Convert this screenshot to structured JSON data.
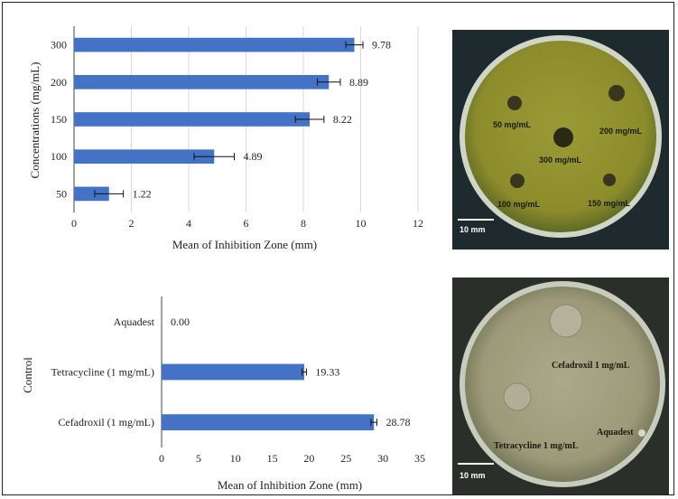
{
  "chart_data": [
    {
      "type": "bar",
      "orientation": "horizontal",
      "categories": [
        "300",
        "200",
        "150",
        "100",
        "50"
      ],
      "values": [
        9.78,
        8.89,
        8.22,
        4.89,
        1.22
      ],
      "value_labels": [
        "9.78",
        "8.89",
        "8.22",
        "4.89",
        "1.22"
      ],
      "errors": [
        0.3,
        0.4,
        0.5,
        0.7,
        0.5
      ],
      "xlabel": "Mean of Inhibition Zone (mm)",
      "ylabel": "Concentrations (mg/mL)",
      "xlim": [
        0,
        12
      ],
      "xticks": [
        "0",
        "2",
        "4",
        "6",
        "8",
        "10",
        "12"
      ],
      "grid": "vertical",
      "bar_color": "#4472c4"
    },
    {
      "type": "bar",
      "orientation": "horizontal",
      "categories": [
        "Aquadest",
        "Tetracycline (1 mg/mL)",
        "Cefadroxil (1 mg/mL)"
      ],
      "values": [
        0,
        19.33,
        28.78
      ],
      "value_labels": [
        "0.00",
        "19.33",
        "28.78"
      ],
      "errors": [
        0,
        0.3,
        0.4
      ],
      "xlabel": "Mean of Inhibition Zone (mm)",
      "ylabel": "Control",
      "xlim": [
        0,
        35
      ],
      "xticks": [
        "0",
        "5",
        "10",
        "15",
        "20",
        "25",
        "30",
        "35"
      ],
      "grid": "none",
      "bar_color": "#4472c4"
    }
  ],
  "photos": [
    {
      "labels": [
        "50 mg/mL",
        "200 mg/mL",
        "300 mg/mL",
        "100 mg/mL",
        "150 mg/mL"
      ],
      "scale_label": "10 mm"
    },
    {
      "labels": [
        "Cefadroxil 1 mg/mL",
        "Aquadest",
        "Tetracycline 1 mg/mL"
      ],
      "scale_label": "10 mm"
    }
  ]
}
